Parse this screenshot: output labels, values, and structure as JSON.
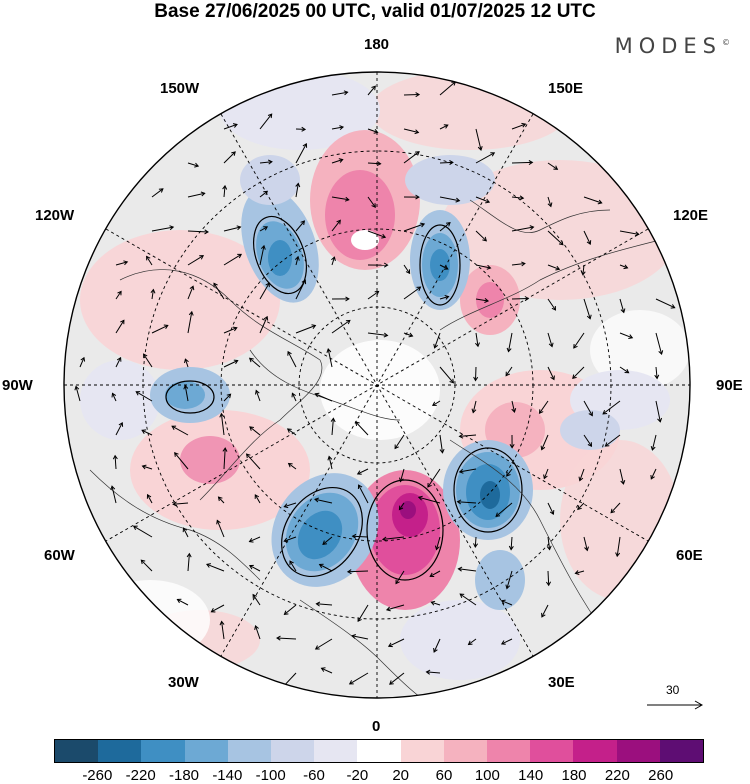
{
  "title": "Base 27/06/2025 00 UTC, valid 01/07/2025 12 UTC",
  "brand": "MODES",
  "brand_mark": "©",
  "longitude_labels": {
    "top": "180",
    "top_left": "150W",
    "top_right": "150E",
    "upper_left": "120W",
    "upper_right": "120E",
    "left": "90W",
    "right": "90E",
    "lower_left": "60W",
    "lower_right": "60E",
    "bottom_left": "30W",
    "bottom_right": "30E",
    "bottom": "0"
  },
  "wind_reference": "30",
  "colorbar": {
    "colors": [
      "#1b4a6b",
      "#1e6a9c",
      "#3f8fc3",
      "#6da9d4",
      "#a7c4e2",
      "#cdd5ea",
      "#e6e6f2",
      "#ffffff",
      "#f9d4d6",
      "#f5b2bf",
      "#ee84ab",
      "#e04f9c",
      "#c4208a",
      "#9b0f7e",
      "#5e0d73"
    ],
    "labels": [
      "-260",
      "-220",
      "-180",
      "-140",
      "-100",
      "-60",
      "-20",
      "20",
      "60",
      "100",
      "140",
      "180",
      "220",
      "260"
    ]
  }
}
